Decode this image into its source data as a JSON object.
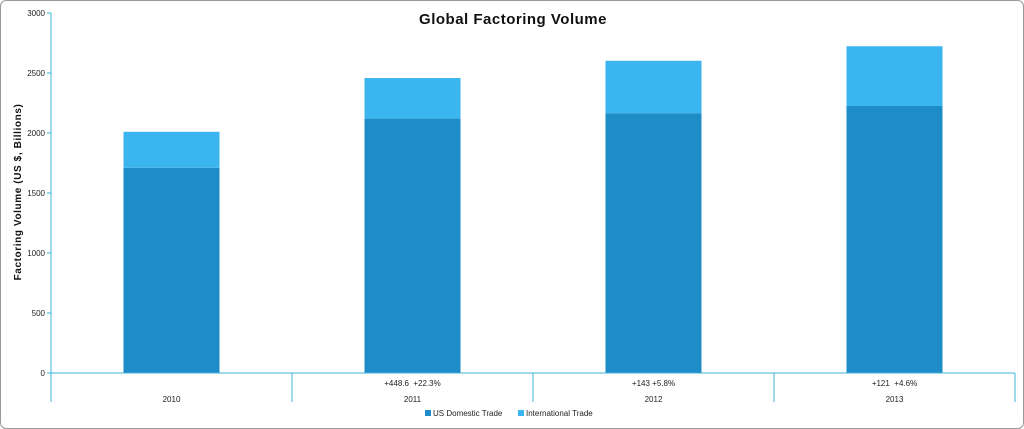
{
  "colors": {
    "domestic": "#1e8cc6",
    "international": "#3bb5f0",
    "axis": "#40b0d8",
    "text": "#111111"
  },
  "chart_data": {
    "type": "bar",
    "stacked": true,
    "title": "Global Factoring Volume",
    "xlabel": "",
    "ylabel": "Factoring Volume (US $, Billions)",
    "ylim": [
      0,
      3000
    ],
    "yticks": [
      "0",
      "500",
      "1000",
      "1500",
      "2000",
      "2500",
      "3000"
    ],
    "categories": [
      "2010",
      "2011",
      "2012",
      "2013"
    ],
    "annotations": [
      "",
      "+448.6  +22.3%",
      "+143 +5.8%",
      "+121  +4.6%"
    ],
    "series": [
      {
        "name": "US Domestic Trade",
        "values": [
          1710,
          2120,
          2165,
          2225
        ]
      },
      {
        "name": "International Trade",
        "values": [
          300,
          338,
          437,
          498
        ]
      }
    ],
    "grid": false,
    "legend": "bottom"
  }
}
